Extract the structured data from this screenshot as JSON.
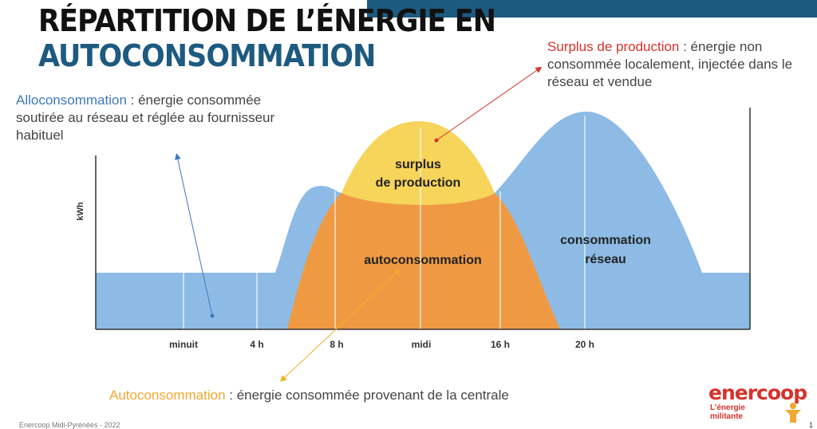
{
  "title": {
    "line1": "RÉPARTITION DE L’ÉNERGIE EN",
    "line2": "AUTOCONSOMMATION"
  },
  "notes": {
    "allo": {
      "keyword": "Alloconsommation",
      "text": " : énergie consommée soutirée au réseau et réglée au fournisseur habituel"
    },
    "surplus": {
      "keyword": "Surplus de production",
      "text": " : énergie non consommée localement, injectée dans le réseau et vendue"
    },
    "auto": {
      "keyword": "Autoconsommation",
      "text": " : énergie consommée provenant de la centrale"
    }
  },
  "chart": {
    "ylabel": "kWh",
    "ticks": [
      "minuit",
      "4 h",
      "8 h",
      "midi",
      "16 h",
      "20 h"
    ],
    "labels": {
      "surplus_line1": "surplus",
      "surplus_line2": "de production",
      "auto": "autoconsommation",
      "reseau_line1": "consommation",
      "reseau_line2": "réseau"
    },
    "colors": {
      "consumption": "#8dbbe6",
      "surplus": "#f7d45a",
      "auto": "#ef9a43",
      "allo_arrow": "#3d7ab8",
      "surplus_arrow": "#d6322c",
      "auto_arrow": "#f0b020"
    }
  },
  "footer": {
    "text": "Enercoop Midi-Pyrénées - 2022"
  },
  "logo": {
    "word": "enercoop",
    "tagline": "L’énergie militante"
  },
  "page_number": "1"
}
